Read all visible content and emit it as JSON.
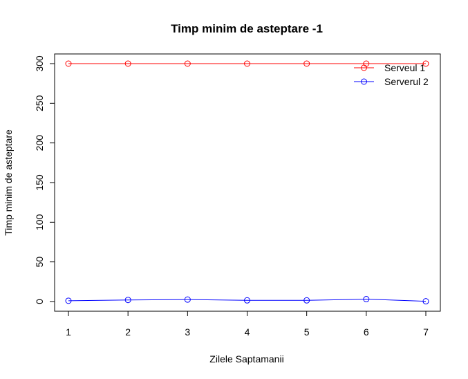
{
  "chart_data": {
    "type": "line",
    "title": "Timp minim de asteptare -1",
    "xlabel": "Zilele Saptamanii",
    "ylabel": "Timp minim de asteptare",
    "x": [
      1,
      2,
      3,
      4,
      5,
      6,
      7
    ],
    "xlim": [
      1,
      7
    ],
    "ylim": [
      0,
      300
    ],
    "xticks": [
      "1",
      "2",
      "3",
      "4",
      "5",
      "6",
      "7"
    ],
    "yticks": [
      "0",
      "50",
      "100",
      "150",
      "200",
      "250",
      "300"
    ],
    "grid": false,
    "legend_position": "top-right",
    "series": [
      {
        "name": "Serveul 1",
        "color": "#ff0000",
        "marker": "open-circle",
        "values": [
          300,
          300,
          300,
          300,
          300,
          300,
          300
        ]
      },
      {
        "name": "Serverul 2",
        "color": "#0000ff",
        "marker": "open-circle",
        "values": [
          1,
          2,
          2.5,
          1.5,
          1.5,
          3,
          0.3
        ]
      }
    ]
  }
}
